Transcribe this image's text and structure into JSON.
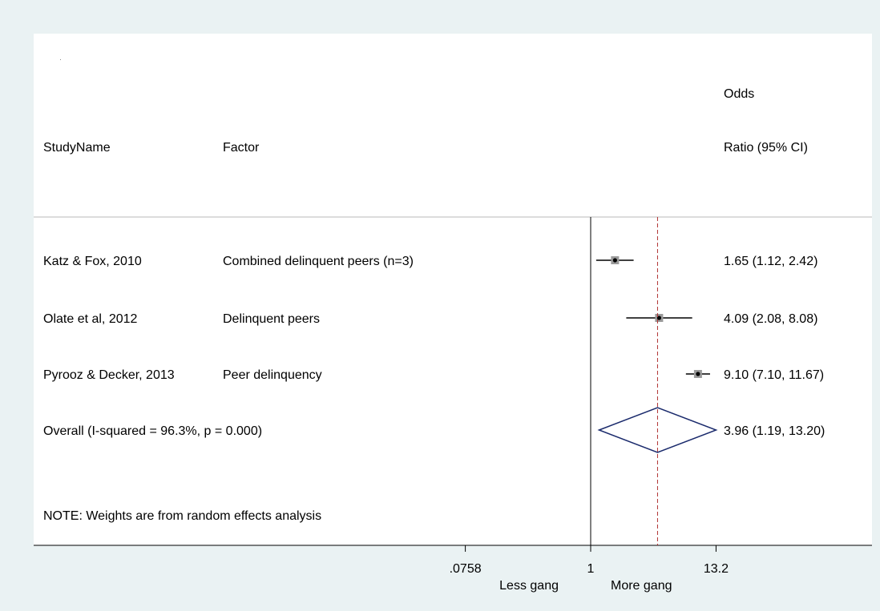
{
  "chart_data": {
    "type": "forest",
    "scale": "log",
    "columns": {
      "study": "StudyName",
      "factor": "Factor",
      "or_header_line1": "Odds",
      "or_header_line2": "Ratio (95% CI)"
    },
    "studies": [
      {
        "name": "Katz & Fox, 2010",
        "factor": "Combined delinquent peers (n=3)",
        "or": 1.65,
        "lo": 1.12,
        "hi": 2.42,
        "label": "1.65 (1.12, 2.42)"
      },
      {
        "name": "Olate et al, 2012",
        "factor": "Delinquent peers",
        "or": 4.09,
        "lo": 2.08,
        "hi": 8.08,
        "label": "4.09 (2.08, 8.08)"
      },
      {
        "name": "Pyrooz & Decker, 2013",
        "factor": "Peer delinquency",
        "or": 9.1,
        "lo": 7.1,
        "hi": 11.67,
        "label": "9.10 (7.10, 11.67)"
      }
    ],
    "overall": {
      "name": "Overall  (I-squared = 96.3%, p = 0.000)",
      "or": 3.96,
      "lo": 1.19,
      "hi": 13.2,
      "label": "3.96 (1.19, 13.20)"
    },
    "note": "NOTE: Weights are from random effects analysis",
    "x_ticks": [
      {
        "value": 0.0758,
        "label": ".0758"
      },
      {
        "value": 1,
        "label": "1"
      },
      {
        "value": 13.2,
        "label": "13.2"
      }
    ],
    "x_range": [
      0.0758,
      13.2
    ],
    "null_value": 1,
    "favours_left": "Less gang",
    "favours_right": "More gang",
    "colors": {
      "background": "#eaf2f3",
      "panel": "#ffffff",
      "diamond": "#1a2a6c",
      "overall_line": "#b03030",
      "marker_box": "#9a9a9a"
    }
  }
}
